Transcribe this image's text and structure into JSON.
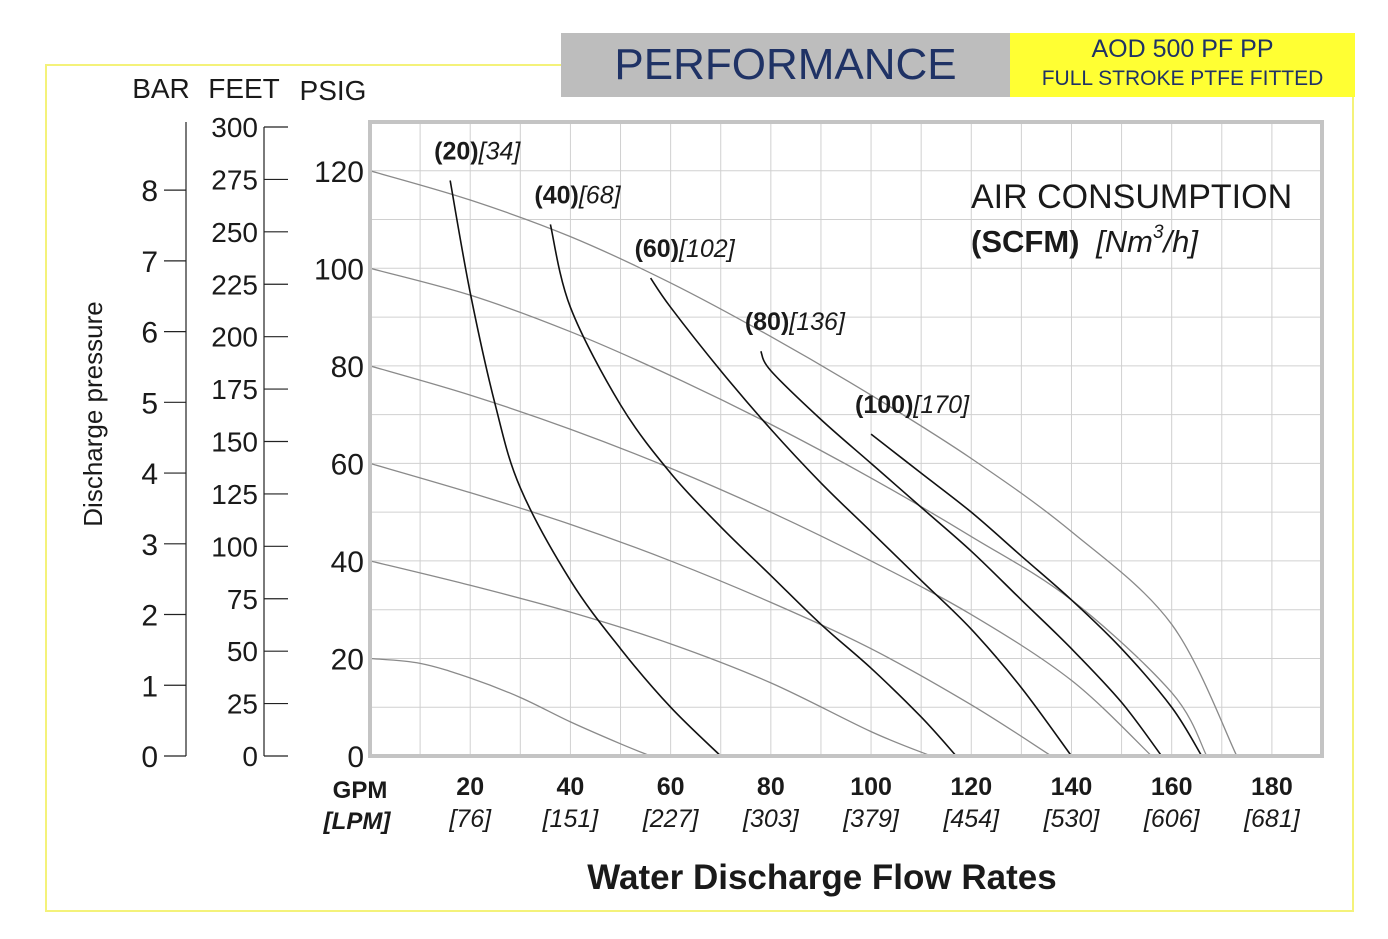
{
  "header": {
    "title": "PERFORMANCE",
    "model_line1": "AOD 500 PF PP",
    "model_line2": "FULL STROKE PTFE FITTED"
  },
  "colors": {
    "header_gray": "#bdbdbd",
    "header_yellow": "#ffff33",
    "frame_yellow": "#f4f27a",
    "title_blue": "#1f3265"
  },
  "chart_data": {
    "type": "line",
    "xlabel": "Water Discharge Flow Rates",
    "x_unit_label": "GPM",
    "x_unit_label_alt": "[LPM]",
    "xlim": [
      0,
      190
    ],
    "ylim": [
      0,
      130
    ],
    "x_ticks": [
      {
        "gpm": "20",
        "lpm": "[76]"
      },
      {
        "gpm": "40",
        "lpm": "[151]"
      },
      {
        "gpm": "60",
        "lpm": "[227]"
      },
      {
        "gpm": "80",
        "lpm": "[303]"
      },
      {
        "gpm": "100",
        "lpm": "[379]"
      },
      {
        "gpm": "120",
        "lpm": "[454]"
      },
      {
        "gpm": "140",
        "lpm": "[530]"
      },
      {
        "gpm": "160",
        "lpm": "[606]"
      },
      {
        "gpm": "180",
        "lpm": "[681]"
      }
    ],
    "psig_ticks": [
      "0",
      "20",
      "40",
      "60",
      "80",
      "100",
      "120"
    ],
    "bar_axis": {
      "label": "BAR",
      "ticks": [
        "0",
        "1",
        "2",
        "3",
        "4",
        "5",
        "6",
        "7",
        "8"
      ]
    },
    "feet_axis": {
      "label": "FEET",
      "ticks": [
        "0",
        "25",
        "50",
        "75",
        "100",
        "125",
        "150",
        "175",
        "200",
        "225",
        "250",
        "275",
        "300"
      ]
    },
    "psig_axis_label": "PSIG",
    "ylabel": "Discharge pressure",
    "legend": {
      "line1": "AIR CONSUMPTION",
      "line2_bold": "(SCFM)",
      "line2_italic": "[Nm",
      "line2_sup": "3",
      "line2_end": "/h]"
    },
    "pressure_curves": [
      {
        "x": [
          0,
          10,
          20,
          30,
          40,
          50,
          56
        ],
        "y": [
          20,
          19,
          16,
          12,
          7,
          2.5,
          0
        ]
      },
      {
        "x": [
          0,
          20,
          40,
          60,
          80,
          100,
          112
        ],
        "y": [
          40,
          35,
          29.5,
          23,
          15,
          5,
          0
        ]
      },
      {
        "x": [
          0,
          20,
          40,
          60,
          80,
          100,
          120,
          136
        ],
        "y": [
          60,
          54,
          47.5,
          40,
          31.5,
          22,
          10.5,
          0
        ]
      },
      {
        "x": [
          0,
          20,
          40,
          60,
          80,
          100,
          120,
          140,
          156
        ],
        "y": [
          80,
          74,
          67,
          59,
          50,
          40,
          29,
          15.5,
          0
        ]
      },
      {
        "x": [
          0,
          20,
          40,
          60,
          80,
          100,
          120,
          140,
          160,
          167
        ],
        "y": [
          100,
          94.5,
          87,
          78,
          68,
          57,
          45,
          32,
          13,
          0
        ]
      },
      {
        "x": [
          0,
          20,
          40,
          60,
          80,
          100,
          120,
          140,
          160,
          173
        ],
        "y": [
          120,
          114,
          106.5,
          97,
          86,
          74,
          61,
          46,
          27,
          0
        ]
      }
    ],
    "air_curves": [
      {
        "label_bold": "(20)",
        "label_italic": "[34]",
        "x": [
          16,
          20,
          25,
          30,
          40,
          50,
          60,
          70
        ],
        "y": [
          118,
          95,
          72,
          55,
          36,
          22,
          10,
          0
        ]
      },
      {
        "label_bold": "(40)",
        "label_italic": "[68]",
        "x": [
          36,
          40,
          50,
          60,
          70,
          80,
          90,
          100,
          110,
          117
        ],
        "y": [
          109,
          92,
          72,
          58,
          47,
          37,
          27,
          18,
          8,
          0
        ]
      },
      {
        "label_bold": "(60)",
        "label_italic": "[102]",
        "x": [
          56,
          60,
          70,
          80,
          90,
          100,
          110,
          120,
          130,
          140
        ],
        "y": [
          98,
          92,
          79,
          67,
          56,
          46,
          36,
          26,
          14,
          0
        ]
      },
      {
        "label_bold": "(80)",
        "label_italic": "[136]",
        "x": [
          78,
          80,
          90,
          100,
          110,
          120,
          130,
          140,
          150,
          158
        ],
        "y": [
          83,
          79,
          69,
          60,
          51,
          42,
          32,
          22,
          11,
          0
        ]
      },
      {
        "label_bold": "(100)",
        "label_italic": "[170]",
        "x": [
          100,
          110,
          120,
          130,
          140,
          150,
          160,
          166
        ],
        "y": [
          66,
          58,
          50,
          41,
          32,
          22,
          10,
          0
        ]
      }
    ]
  }
}
